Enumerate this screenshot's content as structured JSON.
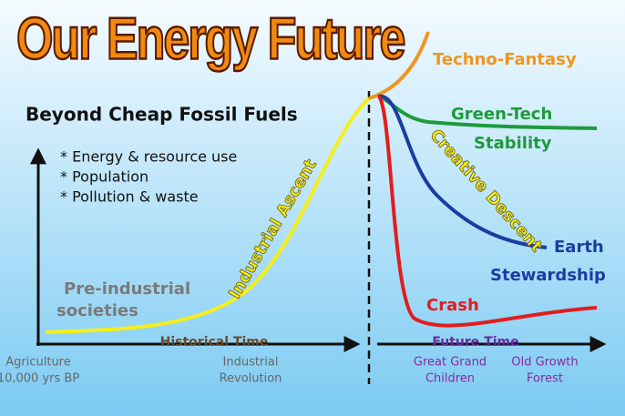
{
  "header": {
    "title": "Our Energy Future",
    "subtitle": "Beyond Cheap Fossil Fuels"
  },
  "axis_measures": [
    "* Energy & resource use",
    "* Population",
    "* Pollution & waste"
  ],
  "axes": {
    "historical": "Historical Time",
    "future": "Future Time"
  },
  "time_labels": [
    [
      "Agriculture",
      "10,000 yrs BP"
    ],
    [
      "Industrial",
      "Revolution"
    ],
    [
      "Great Grand",
      "Children"
    ],
    [
      "Old Growth",
      "Forest"
    ]
  ],
  "curves": {
    "pre_industrial": [
      "Pre-industrial",
      "societies"
    ],
    "ascent": "Industrial Ascent",
    "techno": "Techno-Fantasy",
    "green": [
      "Green-Tech",
      "Stability"
    ],
    "descent": "Creative Descent",
    "earth": [
      "Earth",
      "Stewardship"
    ],
    "crash": "Crash"
  }
}
